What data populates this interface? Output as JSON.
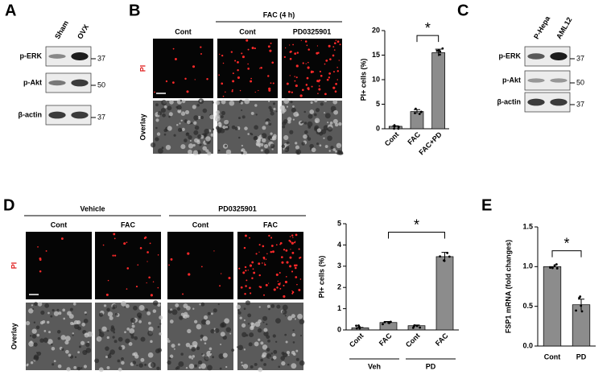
{
  "panel_letters": [
    "A",
    "B",
    "C",
    "D",
    "E"
  ],
  "blot_a": {
    "lanes": [
      "Sham",
      "OVX"
    ],
    "rows": [
      "p-ERK",
      "p-Akt",
      "β-actin"
    ],
    "markers": [
      "37",
      "50",
      "37"
    ]
  },
  "blot_c": {
    "lanes": [
      "P-Hepa",
      "AML12"
    ],
    "rows": [
      "p-ERK",
      "p-Akt",
      "β-actin"
    ],
    "markers": [
      "37",
      "50",
      "37"
    ]
  },
  "images_b": {
    "group": "FAC (4 h)",
    "columns": [
      "Cont",
      "Cont",
      "PD0325901"
    ],
    "rows": [
      "PI",
      "Overlay"
    ]
  },
  "images_d": {
    "groups": [
      "Vehicle",
      "PD0325901"
    ],
    "columns": [
      "Cont",
      "FAC",
      "Cont",
      "FAC"
    ],
    "rows": [
      "PI",
      "Overlay"
    ]
  },
  "chart_data": [
    {
      "type": "bar",
      "ylabel": "PI+ cells (%)",
      "categories": [
        "Cont",
        "FAC",
        "FAC+PD"
      ],
      "values": [
        0.5,
        3.5,
        15.5
      ],
      "errors": [
        0.1,
        0.4,
        0.7
      ],
      "color": "#8c8c8c",
      "ylim": [
        0,
        20
      ],
      "yticks": [
        0,
        5,
        10,
        15,
        20
      ],
      "annotation": "*"
    },
    {
      "type": "bar",
      "ylabel": "PI+ cells (%)",
      "categories": [
        "Cont",
        "FAC",
        "Cont",
        "FAC"
      ],
      "groups": [
        "Veh",
        "PD"
      ],
      "values": [
        0.1,
        0.35,
        0.2,
        3.45
      ],
      "errors": [
        0.02,
        0.05,
        0.03,
        0.2
      ],
      "color": "#8c8c8c",
      "ylim": [
        0,
        5
      ],
      "yticks": [
        0,
        1,
        2,
        3,
        4,
        5
      ],
      "annotation": "*"
    },
    {
      "type": "bar",
      "ylabel": "FSP1 mRNA (fold changes)",
      "categories": [
        "Cont",
        "PD"
      ],
      "values": [
        1.0,
        0.52
      ],
      "errors": [
        0.0,
        0.07
      ],
      "color": "#8c8c8c",
      "ylim": [
        0,
        1.5
      ],
      "yticks": [
        {
          "value": 0,
          "label": "0.0"
        },
        0.5,
        {
          "value": 1,
          "label": "1.0"
        },
        1.5
      ],
      "annotation": "*"
    }
  ]
}
